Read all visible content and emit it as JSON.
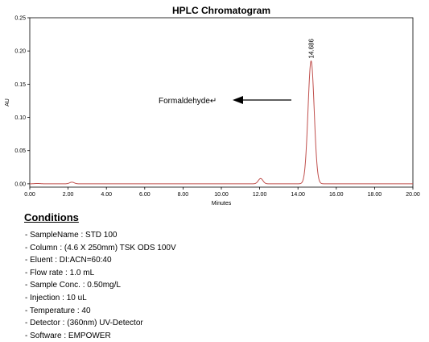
{
  "chart_data": {
    "type": "line",
    "title": "HPLC Chromatogram",
    "xlabel": "Minutes",
    "ylabel": "AU",
    "xlim": [
      0,
      20
    ],
    "ylim": [
      -0.005,
      0.25
    ],
    "x_ticks": [
      "0.00",
      "2.00",
      "4.00",
      "6.00",
      "8.00",
      "10.00",
      "12.00",
      "14.00",
      "16.00",
      "18.00",
      "20.00"
    ],
    "y_ticks": [
      "0.00",
      "0.05",
      "0.10",
      "0.15",
      "0.20",
      "0.25"
    ],
    "grid": false,
    "series": [
      {
        "color": "#c0504d",
        "peaks": [
          {
            "retention_time": 0.4,
            "height": 0.0005,
            "width": 0.15
          },
          {
            "retention_time": 2.2,
            "height": 0.0025,
            "width": 0.12
          },
          {
            "retention_time": 12.05,
            "height": 0.008,
            "width": 0.12
          },
          {
            "retention_time": 14.686,
            "height": 0.185,
            "width": 0.16
          }
        ]
      }
    ],
    "peak_labels": [
      {
        "x": 14.686,
        "y": 0.185,
        "text": "14.686"
      }
    ],
    "annotations": [
      {
        "text": "Formaldehyde↵",
        "arrow_to": [
          13.8,
          0.125
        ]
      }
    ]
  },
  "conditions": {
    "title": "Conditions",
    "items": [
      "- SampleName : STD 100",
      "- Column : (4.6 X 250mm) TSK ODS 100V",
      "- Eluent : DI:ACN=60:40",
      "- Flow rate : 1.0 mL",
      "- Sample Conc. : 0.50mg/L",
      "- Injection : 10 uL",
      "- Temperature :  40",
      "- Detector : (360nm) UV-Detector",
      "- Software : EMPOWER"
    ]
  }
}
